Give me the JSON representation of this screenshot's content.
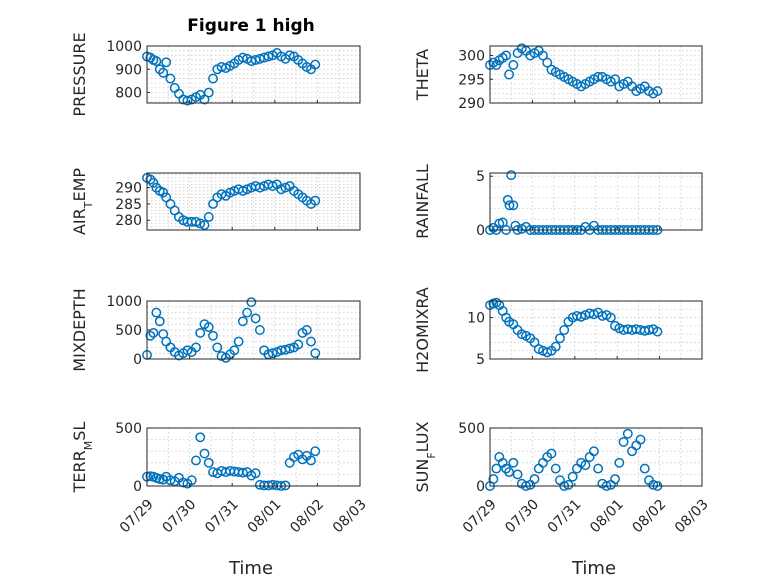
{
  "figure": {
    "title": "Figure 1 high",
    "marker_color": "#0072bd",
    "x_axis_label": "Time",
    "x_tick_labels": [
      "07/29",
      "07/30",
      "07/31",
      "08/01",
      "08/02",
      "08/03"
    ]
  },
  "chart_data": [
    {
      "type": "scatter",
      "ylabel": "PRESSURE",
      "title": "Figure 1 high",
      "xlim": [
        0,
        5
      ],
      "ylim": [
        755,
        1000
      ],
      "yticks": [
        800,
        900,
        1000
      ],
      "xlabel": "",
      "series": [
        {
          "x": [
            0.0,
            0.08,
            0.15,
            0.22,
            0.3,
            0.38,
            0.45,
            0.55,
            0.65,
            0.75,
            0.85,
            0.95,
            1.05,
            1.15,
            1.25,
            1.35,
            1.45,
            1.55,
            1.65,
            1.75,
            1.85,
            1.95,
            2.05,
            2.15,
            2.25,
            2.35,
            2.45,
            2.55,
            2.65,
            2.75,
            2.85,
            2.95,
            3.05,
            3.15,
            3.25,
            3.35,
            3.45,
            3.55,
            3.65,
            3.75,
            3.85,
            3.95
          ],
          "y": [
            955,
            950,
            940,
            935,
            900,
            885,
            930,
            860,
            820,
            795,
            770,
            765,
            770,
            780,
            790,
            770,
            800,
            860,
            900,
            910,
            905,
            915,
            925,
            940,
            950,
            945,
            935,
            940,
            945,
            950,
            955,
            960,
            970,
            955,
            945,
            960,
            955,
            940,
            925,
            910,
            900,
            920
          ]
        }
      ]
    },
    {
      "type": "scatter",
      "ylabel": "THETA",
      "xlim": [
        0,
        5
      ],
      "ylim": [
        290,
        302
      ],
      "yticks": [
        290,
        295,
        300
      ],
      "xlabel": "",
      "series": [
        {
          "x": [
            0.0,
            0.08,
            0.15,
            0.22,
            0.3,
            0.38,
            0.45,
            0.55,
            0.65,
            0.75,
            0.85,
            0.95,
            1.05,
            1.15,
            1.25,
            1.35,
            1.45,
            1.55,
            1.65,
            1.75,
            1.85,
            1.95,
            2.05,
            2.15,
            2.25,
            2.35,
            2.45,
            2.55,
            2.65,
            2.75,
            2.85,
            2.95,
            3.05,
            3.15,
            3.25,
            3.35,
            3.45,
            3.55,
            3.65,
            3.75,
            3.85,
            3.95
          ],
          "y": [
            298,
            298.5,
            298,
            299,
            299.5,
            300,
            296,
            298,
            300.5,
            301.5,
            301,
            300,
            300.5,
            301,
            300,
            298.5,
            297,
            296.5,
            296,
            295.5,
            295,
            294.5,
            294,
            293.5,
            294,
            294.5,
            295,
            295.5,
            295.5,
            295,
            294.5,
            295,
            293.5,
            294,
            294.5,
            293.5,
            292.5,
            293,
            293.5,
            292.5,
            292,
            292.5
          ]
        }
      ]
    },
    {
      "type": "scatter",
      "ylabel": "AIR_TEMP",
      "xlim": [
        0,
        5
      ],
      "ylim": [
        277,
        294.5
      ],
      "yticks": [
        280,
        285,
        290
      ],
      "xlabel": "",
      "series": [
        {
          "x": [
            0.0,
            0.08,
            0.15,
            0.22,
            0.3,
            0.38,
            0.45,
            0.55,
            0.65,
            0.75,
            0.85,
            0.95,
            1.05,
            1.15,
            1.25,
            1.35,
            1.45,
            1.55,
            1.65,
            1.75,
            1.85,
            1.95,
            2.05,
            2.15,
            2.25,
            2.35,
            2.45,
            2.55,
            2.65,
            2.75,
            2.85,
            2.95,
            3.05,
            3.15,
            3.25,
            3.35,
            3.45,
            3.55,
            3.65,
            3.75,
            3.85,
            3.95
          ],
          "y": [
            293,
            292.5,
            291.5,
            290,
            289,
            288.5,
            287,
            285,
            283,
            281,
            280,
            279.5,
            279.5,
            279.5,
            279,
            278.5,
            281,
            285,
            287,
            288,
            287.5,
            288.5,
            289,
            289.5,
            289,
            289.5,
            290,
            290.5,
            290,
            290.5,
            291,
            290.5,
            291,
            289.5,
            290,
            290.5,
            289,
            288,
            287,
            286,
            285,
            286
          ]
        }
      ]
    },
    {
      "type": "scatter",
      "ylabel": "RAINFALL",
      "xlim": [
        0,
        5
      ],
      "ylim": [
        0,
        5.3
      ],
      "yticks": [
        0,
        5
      ],
      "xlabel": "",
      "series": [
        {
          "x": [
            0.0,
            0.08,
            0.15,
            0.22,
            0.3,
            0.38,
            0.42,
            0.46,
            0.5,
            0.55,
            0.6,
            0.65,
            0.75,
            0.85,
            0.95,
            1.05,
            1.15,
            1.25,
            1.35,
            1.45,
            1.55,
            1.65,
            1.75,
            1.85,
            1.95,
            2.05,
            2.15,
            2.25,
            2.35,
            2.45,
            2.55,
            2.65,
            2.75,
            2.85,
            2.95,
            3.05,
            3.15,
            3.25,
            3.35,
            3.45,
            3.55,
            3.65,
            3.75,
            3.85,
            3.95
          ],
          "y": [
            0,
            0.2,
            0,
            0.6,
            0.7,
            0,
            2.8,
            2.3,
            5.1,
            2.3,
            0.4,
            0,
            0.1,
            0.3,
            0,
            0,
            0,
            0,
            0,
            0,
            0,
            0,
            0,
            0,
            0,
            0,
            0,
            0.3,
            0,
            0.4,
            0,
            0,
            0,
            0,
            0,
            0,
            0,
            0,
            0,
            0,
            0,
            0,
            0,
            0,
            0
          ]
        }
      ]
    },
    {
      "type": "scatter",
      "ylabel": "MIXDEPTH",
      "xlim": [
        0,
        5
      ],
      "ylim": [
        0,
        1000
      ],
      "yticks": [
        0,
        500,
        1000
      ],
      "xlabel": "",
      "series": [
        {
          "x": [
            0.0,
            0.08,
            0.15,
            0.22,
            0.3,
            0.38,
            0.45,
            0.55,
            0.65,
            0.75,
            0.85,
            0.95,
            1.05,
            1.15,
            1.25,
            1.35,
            1.45,
            1.55,
            1.65,
            1.75,
            1.85,
            1.95,
            2.05,
            2.15,
            2.25,
            2.35,
            2.45,
            2.55,
            2.65,
            2.75,
            2.85,
            2.95,
            3.05,
            3.15,
            3.25,
            3.35,
            3.45,
            3.55,
            3.65,
            3.75,
            3.85,
            3.95
          ],
          "y": [
            70,
            400,
            450,
            800,
            650,
            430,
            300,
            200,
            120,
            60,
            100,
            150,
            120,
            200,
            450,
            600,
            550,
            400,
            200,
            50,
            20,
            80,
            150,
            300,
            650,
            800,
            980,
            700,
            500,
            150,
            80,
            100,
            120,
            150,
            160,
            180,
            200,
            250,
            450,
            500,
            300,
            100
          ]
        }
      ]
    },
    {
      "type": "scatter",
      "ylabel": "H2OMIXRA",
      "xlim": [
        0,
        5
      ],
      "ylim": [
        5,
        12
      ],
      "yticks": [
        5,
        10
      ],
      "xlabel": "",
      "series": [
        {
          "x": [
            0.0,
            0.08,
            0.15,
            0.22,
            0.3,
            0.38,
            0.45,
            0.55,
            0.65,
            0.75,
            0.85,
            0.95,
            1.05,
            1.15,
            1.25,
            1.35,
            1.45,
            1.55,
            1.65,
            1.75,
            1.85,
            1.95,
            2.05,
            2.15,
            2.25,
            2.35,
            2.45,
            2.55,
            2.65,
            2.75,
            2.85,
            2.95,
            3.05,
            3.15,
            3.25,
            3.35,
            3.45,
            3.55,
            3.65,
            3.75,
            3.85,
            3.95
          ],
          "y": [
            11.5,
            11.7,
            11.8,
            11.5,
            10.8,
            10,
            9.5,
            9.2,
            8.5,
            8,
            7.8,
            7.5,
            7,
            6.2,
            6,
            5.8,
            6,
            6.5,
            7.5,
            8.5,
            9.5,
            10,
            10.2,
            10.1,
            10.3,
            10.5,
            10.4,
            10.6,
            10.2,
            10.3,
            10,
            9,
            8.7,
            8.5,
            8.6,
            8.5,
            8.6,
            8.5,
            8.4,
            8.5,
            8.6,
            8.3
          ]
        }
      ]
    },
    {
      "type": "scatter",
      "ylabel": "TERR_MSL",
      "xlim": [
        0,
        5
      ],
      "ylim": [
        0,
        500
      ],
      "yticks": [
        0,
        500
      ],
      "xlabel": "Time",
      "series": [
        {
          "x": [
            0.0,
            0.08,
            0.15,
            0.22,
            0.3,
            0.38,
            0.45,
            0.55,
            0.65,
            0.75,
            0.85,
            0.95,
            1.05,
            1.15,
            1.25,
            1.35,
            1.45,
            1.55,
            1.65,
            1.75,
            1.85,
            1.95,
            2.05,
            2.15,
            2.25,
            2.35,
            2.45,
            2.55,
            2.65,
            2.75,
            2.85,
            2.95,
            3.05,
            3.15,
            3.25,
            3.35,
            3.45,
            3.55,
            3.65,
            3.75,
            3.85,
            3.95
          ],
          "y": [
            80,
            85,
            80,
            70,
            60,
            55,
            80,
            50,
            40,
            70,
            30,
            20,
            50,
            220,
            420,
            280,
            200,
            120,
            110,
            130,
            120,
            130,
            125,
            120,
            115,
            120,
            90,
            110,
            10,
            5,
            5,
            10,
            5,
            0,
            5,
            200,
            250,
            270,
            230,
            260,
            220,
            300
          ]
        }
      ]
    },
    {
      "type": "scatter",
      "ylabel": "SUN_FLUX",
      "xlim": [
        0,
        5
      ],
      "ylim": [
        0,
        500
      ],
      "yticks": [
        0,
        500
      ],
      "xlabel": "Time",
      "series": [
        {
          "x": [
            0.0,
            0.08,
            0.15,
            0.22,
            0.3,
            0.38,
            0.45,
            0.55,
            0.65,
            0.75,
            0.85,
            0.95,
            1.05,
            1.15,
            1.25,
            1.35,
            1.45,
            1.55,
            1.65,
            1.75,
            1.85,
            1.95,
            2.05,
            2.15,
            2.25,
            2.35,
            2.45,
            2.55,
            2.65,
            2.75,
            2.85,
            2.95,
            3.05,
            3.15,
            3.25,
            3.35,
            3.45,
            3.55,
            3.65,
            3.75,
            3.85,
            3.95
          ],
          "y": [
            0,
            60,
            150,
            250,
            200,
            150,
            120,
            200,
            100,
            20,
            0,
            10,
            60,
            150,
            200,
            250,
            280,
            150,
            50,
            0,
            10,
            80,
            150,
            200,
            180,
            250,
            300,
            150,
            20,
            0,
            10,
            60,
            200,
            380,
            450,
            300,
            350,
            400,
            150,
            50,
            10,
            0
          ]
        }
      ]
    }
  ]
}
